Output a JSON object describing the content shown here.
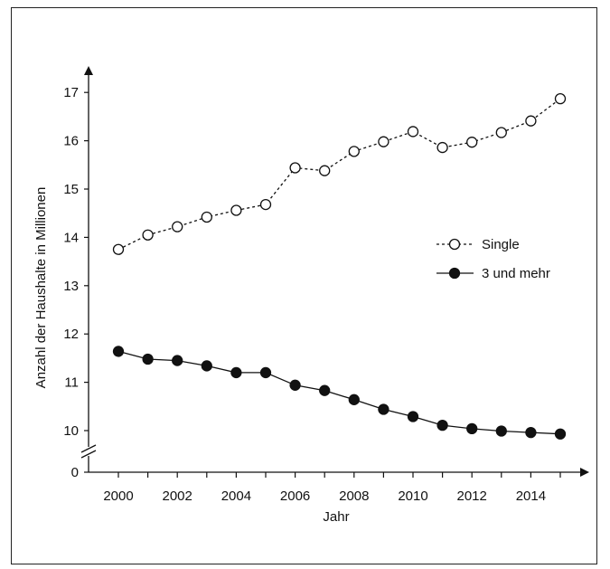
{
  "chart_data": {
    "type": "line",
    "title": "",
    "xlabel": "Jahr",
    "ylabel": "Anzahl der Haushalte in Millionen",
    "x": [
      2000,
      2001,
      2002,
      2003,
      2004,
      2005,
      2006,
      2007,
      2008,
      2009,
      2010,
      2011,
      2012,
      2013,
      2014,
      2015
    ],
    "x_ticks": [
      "2000",
      "2002",
      "2004",
      "2006",
      "2008",
      "2010",
      "2012",
      "2014"
    ],
    "y_ticks": [
      "0",
      "10",
      "11",
      "12",
      "13",
      "14",
      "15",
      "16",
      "17"
    ],
    "ylim": [
      0,
      17
    ],
    "y_axis_break": [
      0,
      10
    ],
    "grid": false,
    "legend_position": "right",
    "series": [
      {
        "name": "Single",
        "marker": "open-circle",
        "line_style": "dashed",
        "values": [
          13.75,
          14.05,
          14.22,
          14.42,
          14.56,
          14.68,
          15.44,
          15.38,
          15.78,
          15.98,
          16.19,
          15.86,
          15.97,
          16.17,
          16.41,
          16.87
        ]
      },
      {
        "name": "3 und mehr",
        "marker": "filled-circle",
        "line_style": "solid",
        "values": [
          11.64,
          11.48,
          11.45,
          11.34,
          11.2,
          11.2,
          10.94,
          10.83,
          10.64,
          10.44,
          10.29,
          10.11,
          10.04,
          9.99,
          9.96,
          9.93
        ]
      }
    ]
  }
}
